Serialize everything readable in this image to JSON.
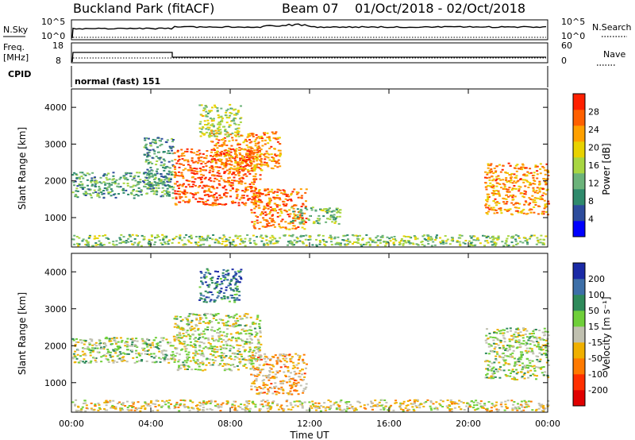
{
  "header": {
    "title": "Buckland Park (fitACF)",
    "beam": "Beam 07",
    "date_range": "01/Oct/2018 - 02/Oct/2018"
  },
  "summary_panels": {
    "nsky": {
      "label": "N.Sky",
      "tick_top": "10^5",
      "tick_bottom": "10^0"
    },
    "nsearch": {
      "label": "N.Search",
      "tick_top": "10^5",
      "tick_bottom": "10^0"
    },
    "freq": {
      "label_line1": "Freq.",
      "label_line2": "[MHz]",
      "tick_top": "18",
      "tick_bottom": "8"
    },
    "nave": {
      "label": "Nave",
      "tick_top": "60",
      "tick_bottom": "0"
    },
    "cpid": {
      "label": "CPID",
      "mode": "normal (fast) 151"
    }
  },
  "chart_data": [
    {
      "type": "heatmap",
      "name": "power",
      "ylabel": "Slant Range [km]",
      "yticks": [
        "1000",
        "2000",
        "3000",
        "4000"
      ],
      "ylim": [
        200,
        4500
      ],
      "xlim_hours": [
        0,
        24
      ],
      "colorbar": {
        "label": "Power [dB]",
        "ticks": [
          "4",
          "8",
          "12",
          "16",
          "20",
          "24",
          "28"
        ],
        "range": [
          0,
          32
        ],
        "colors": [
          "#0000ff",
          "#2d4c9c",
          "#2f8a6c",
          "#6bb37a",
          "#a8d642",
          "#e8d200",
          "#ffa000",
          "#ff6000",
          "#ff2000"
        ]
      },
      "echo_regions": [
        {
          "t": [
            0,
            5.1
          ],
          "r": [
            1550,
            2250
          ],
          "level": 0.35
        },
        {
          "t": [
            3.6,
            5.1
          ],
          "r": [
            1850,
            3200
          ],
          "level": 0.3
        },
        {
          "t": [
            5.1,
            9.5
          ],
          "r": [
            1350,
            2900
          ],
          "level": 0.85
        },
        {
          "t": [
            7.0,
            10.5
          ],
          "r": [
            2300,
            3350
          ],
          "level": 0.75
        },
        {
          "t": [
            6.4,
            8.5
          ],
          "r": [
            3200,
            4100
          ],
          "level": 0.5
        },
        {
          "t": [
            9.0,
            11.8
          ],
          "r": [
            700,
            1800
          ],
          "level": 0.8
        },
        {
          "t": [
            11.0,
            13.5
          ],
          "r": [
            850,
            1300
          ],
          "level": 0.4
        },
        {
          "t": [
            20.8,
            24.0
          ],
          "r": [
            1100,
            2500
          ],
          "level": 0.75
        },
        {
          "t": [
            0,
            24.0
          ],
          "r": [
            250,
            550
          ],
          "level": 0.45
        }
      ]
    },
    {
      "type": "heatmap",
      "name": "velocity",
      "ylabel": "Slant Range [km]",
      "xlabel": "Time UT",
      "xticks": [
        "00:00",
        "04:00",
        "08:00",
        "12:00",
        "16:00",
        "20:00",
        "00:00"
      ],
      "yticks": [
        "1000",
        "2000",
        "3000",
        "4000"
      ],
      "ylim": [
        200,
        4500
      ],
      "xlim_hours": [
        0,
        24
      ],
      "colorbar": {
        "label": "Velocity [m s⁻¹]",
        "ticks": [
          "200",
          "100",
          "50",
          "15",
          "-15",
          "-50",
          "-100",
          "-200"
        ],
        "colors": [
          "#1a2aa6",
          "#3d6fa8",
          "#2e8a5a",
          "#6fcf3a",
          "#c0c0b0",
          "#f0b000",
          "#ff7a00",
          "#ff3000",
          "#e00000"
        ]
      },
      "echo_regions": [
        {
          "t": [
            0,
            5.1
          ],
          "r": [
            1550,
            2250
          ],
          "level": 0.45
        },
        {
          "t": [
            5.1,
            9.5
          ],
          "r": [
            1350,
            2900
          ],
          "level": 0.48
        },
        {
          "t": [
            6.4,
            8.5
          ],
          "r": [
            3200,
            4100
          ],
          "level": 0.2
        },
        {
          "t": [
            9.0,
            11.8
          ],
          "r": [
            700,
            1800
          ],
          "level": 0.62
        },
        {
          "t": [
            20.8,
            24.0
          ],
          "r": [
            1100,
            2500
          ],
          "level": 0.45
        },
        {
          "t": [
            0,
            24.0
          ],
          "r": [
            250,
            550
          ],
          "level": 0.55
        }
      ]
    }
  ]
}
